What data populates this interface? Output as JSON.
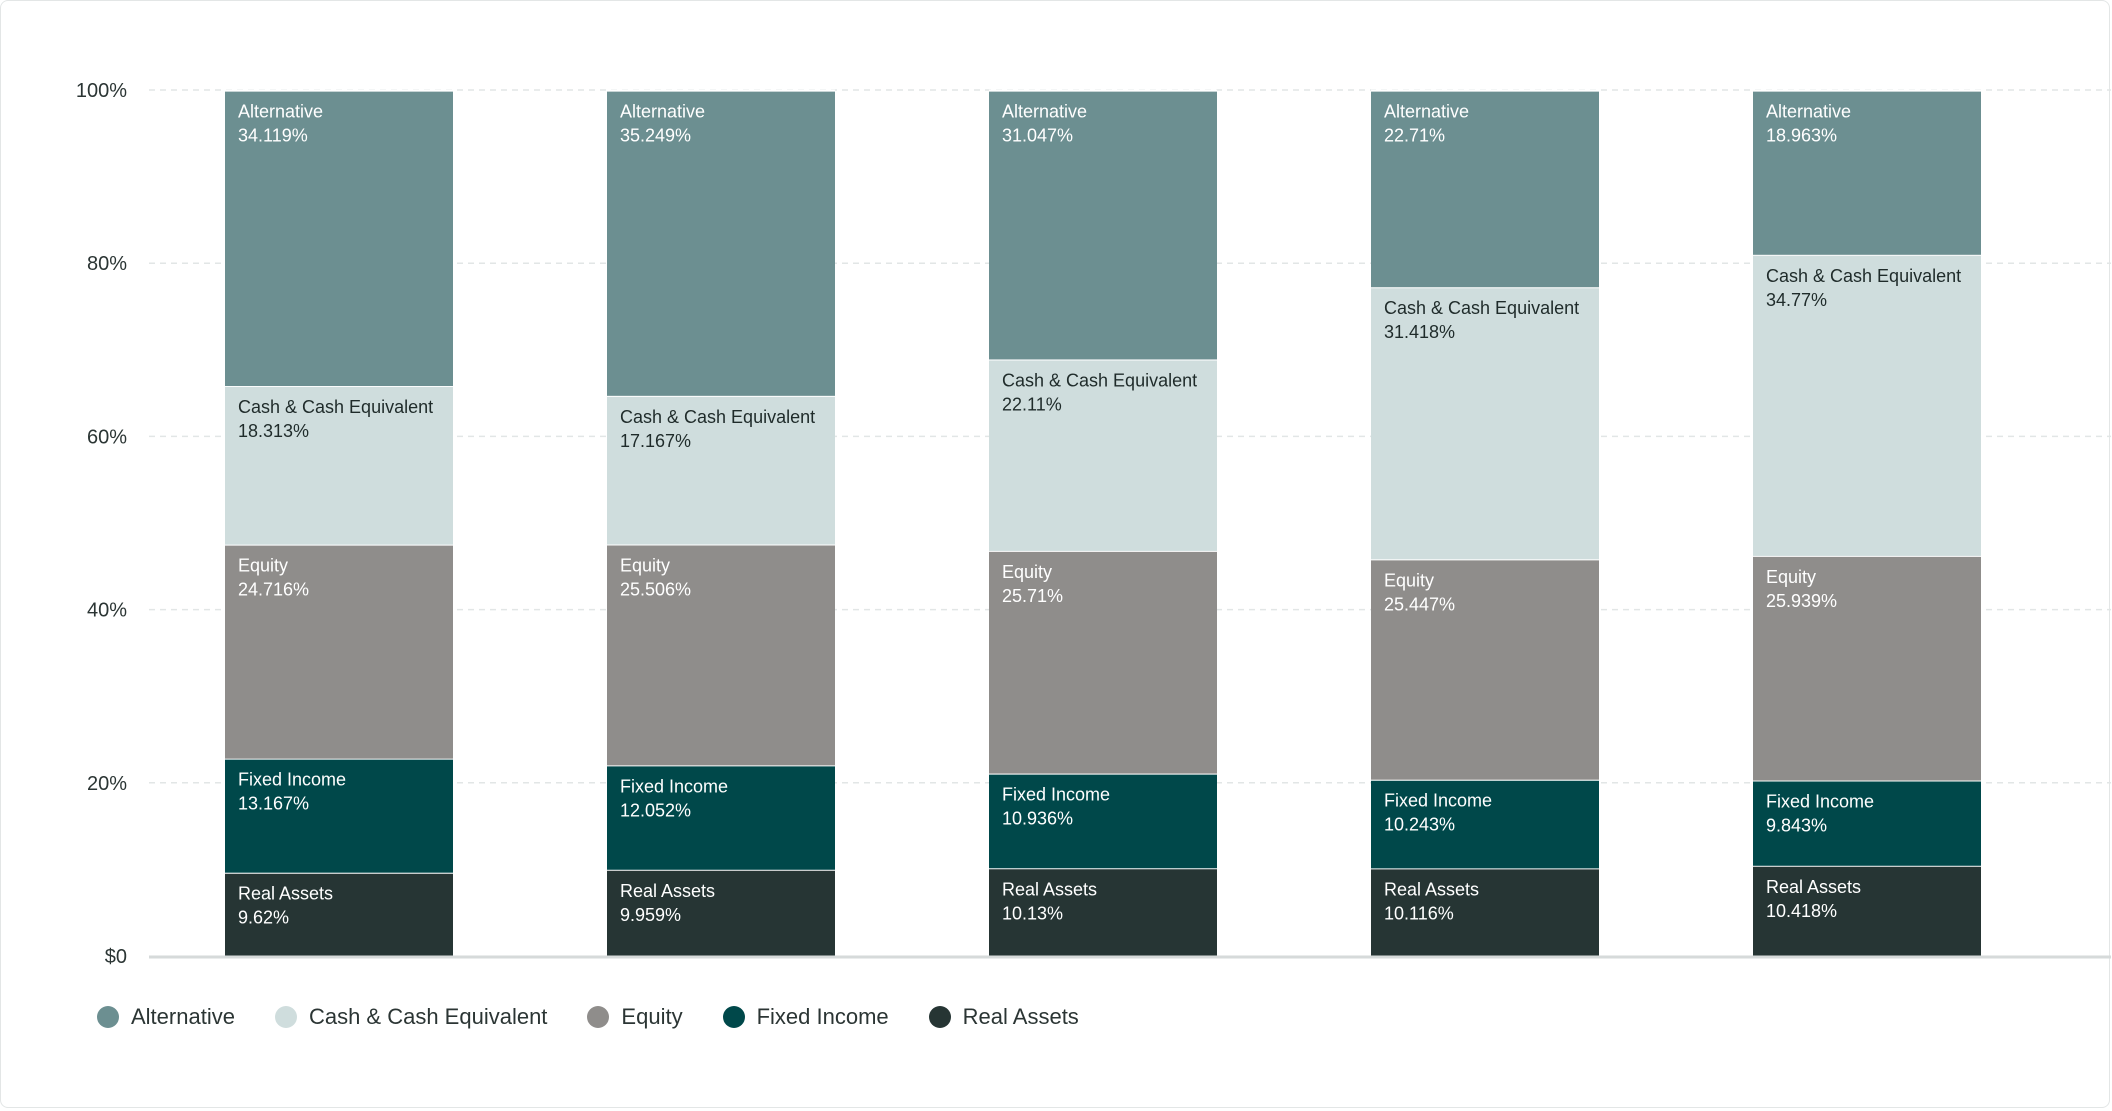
{
  "chart_data": {
    "type": "bar",
    "stacked": true,
    "categories": [
      "",
      "",
      "",
      "",
      ""
    ],
    "yticks": [
      "$0",
      "20%",
      "40%",
      "60%",
      "80%",
      "100%"
    ],
    "ylim": [
      0,
      100
    ],
    "grid": true,
    "legend_position": "bottom-left",
    "series": [
      {
        "name": "Real Assets",
        "color": "#263534",
        "text_color": "#ffffff",
        "values": [
          9.62,
          9.959,
          10.13,
          10.116,
          10.418
        ],
        "labels": [
          "9.62%",
          "9.959%",
          "10.13%",
          "10.116%",
          "10.418%"
        ]
      },
      {
        "name": "Fixed Income",
        "color": "#00484a",
        "text_color": "#ffffff",
        "values": [
          13.167,
          12.052,
          10.936,
          10.243,
          9.843
        ],
        "labels": [
          "13.167%",
          "12.052%",
          "10.936%",
          "10.243%",
          "9.843%"
        ]
      },
      {
        "name": "Equity",
        "color": "#8f8d8b",
        "text_color": "#ffffff",
        "values": [
          24.716,
          25.506,
          25.71,
          25.447,
          25.939
        ],
        "labels": [
          "24.716%",
          "25.506%",
          "25.71%",
          "25.447%",
          "25.939%"
        ]
      },
      {
        "name": "Cash & Cash Equivalent",
        "color": "#cfdddd",
        "text_color": "#1f2b2a",
        "values": [
          18.313,
          17.167,
          22.11,
          31.418,
          34.77
        ],
        "labels": [
          "18.313%",
          "17.167%",
          "22.11%",
          "31.418%",
          "34.77%"
        ]
      },
      {
        "name": "Alternative",
        "color": "#6c8f91",
        "text_color": "#ffffff",
        "values": [
          34.119,
          35.249,
          31.047,
          22.71,
          18.963
        ],
        "labels": [
          "34.119%",
          "35.249%",
          "31.047%",
          "22.71%",
          "18.963%"
        ]
      }
    ]
  },
  "legend": {
    "items": [
      {
        "label": "Alternative",
        "color": "#6c8f91"
      },
      {
        "label": "Cash & Cash Equivalent",
        "color": "#cfdddd"
      },
      {
        "label": "Equity",
        "color": "#8f8d8b"
      },
      {
        "label": "Fixed Income",
        "color": "#00484a"
      },
      {
        "label": "Real Assets",
        "color": "#263534"
      }
    ]
  }
}
